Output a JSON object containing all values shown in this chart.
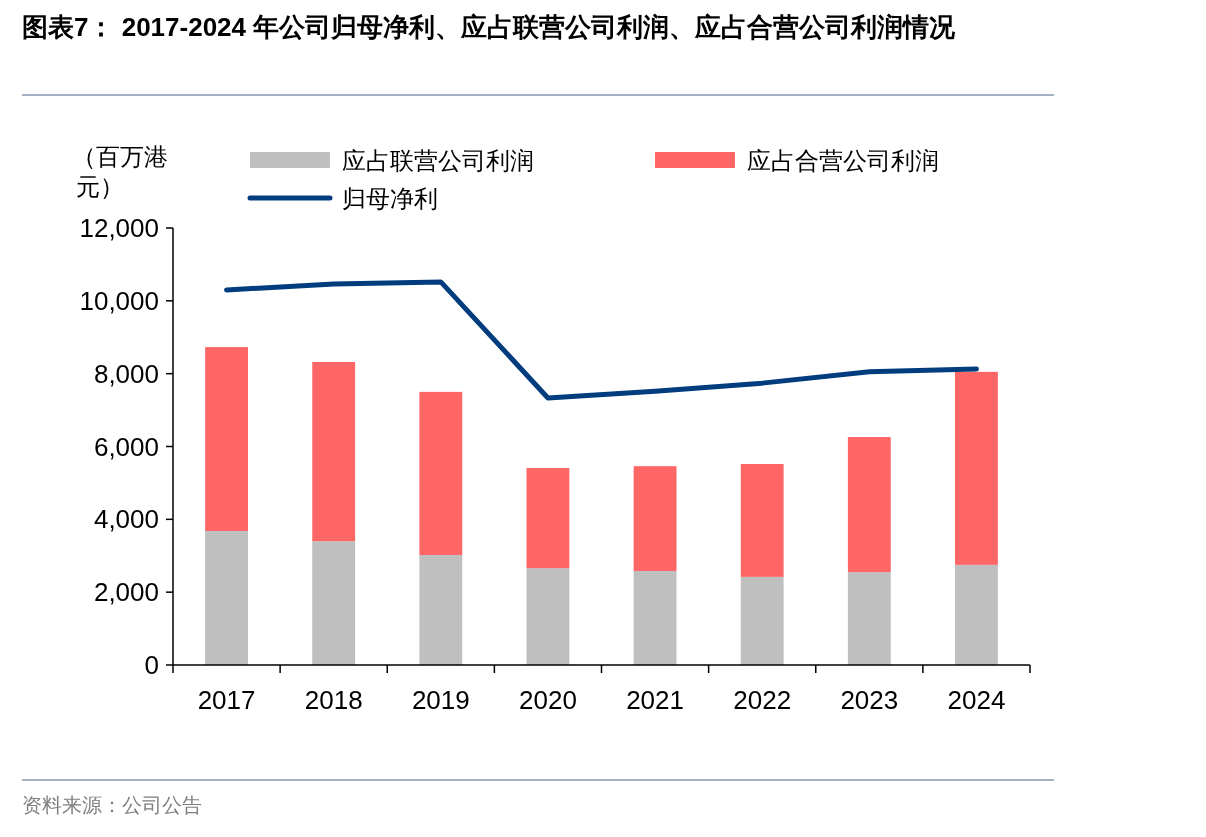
{
  "chart_data": {
    "type": "bar",
    "stacked": true,
    "title": "图表7：  2017-2024 年公司归母净利、应占联营公司利润、应占合营公司利润情况",
    "ylabel": "（百万港元）",
    "categories": [
      "2017",
      "2018",
      "2019",
      "2020",
      "2021",
      "2022",
      "2023",
      "2024"
    ],
    "series": [
      {
        "name": "应占联营公司利润",
        "color": "#bfbfbf",
        "values": [
          3680,
          3400,
          3020,
          2660,
          2580,
          2420,
          2550,
          2750
        ]
      },
      {
        "name": "应占合营公司利润",
        "color": "#ff6666",
        "values": [
          5050,
          4920,
          4480,
          2750,
          2880,
          3100,
          3710,
          5300
        ]
      },
      {
        "name": "归母净利",
        "type": "line",
        "color": "#003c7e",
        "values": [
          10300,
          10460,
          10520,
          7330,
          7520,
          7740,
          8050,
          8130
        ]
      }
    ],
    "ylim": [
      0,
      12000
    ],
    "yticks": [
      0,
      {
        "value": 2000,
        "label": "2,000"
      },
      {
        "value": 4000,
        "label": "4,000"
      },
      {
        "value": 6000,
        "label": "6,000"
      },
      {
        "value": 8000,
        "label": "8,000"
      },
      {
        "value": 10000,
        "label": "10,000"
      },
      {
        "value": 12000,
        "label": "12,000"
      }
    ],
    "grid": false,
    "legend": "top",
    "annotations": [
      "资料来源：公司公告"
    ]
  }
}
